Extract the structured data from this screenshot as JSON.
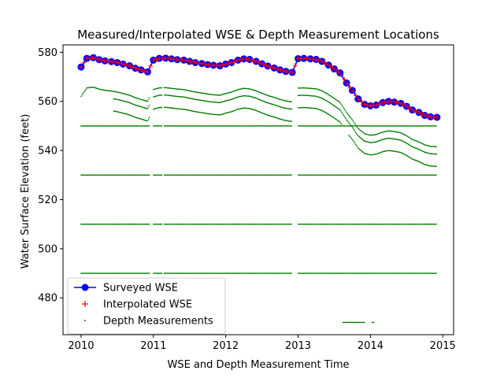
{
  "chart_data": {
    "type": "scatter",
    "title": "Measured/Interpolated WSE & Depth Measurement Locations",
    "xlabel": "WSE and Depth Measurement Time",
    "ylabel": "Water Surface Elevation (feet)",
    "xlim": [
      2009.75,
      2015.15
    ],
    "ylim": [
      465,
      583
    ],
    "xticks": [
      2010,
      2011,
      2012,
      2013,
      2014,
      2015
    ],
    "xtick_labels": [
      "2010",
      "2011",
      "2012",
      "2013",
      "2014",
      "2015"
    ],
    "yticks": [
      480,
      500,
      520,
      540,
      560,
      580
    ],
    "ytick_labels": [
      "480",
      "500",
      "520",
      "540",
      "560",
      "580"
    ],
    "grid": false,
    "legend": {
      "position": "lower-left",
      "entries": [
        "Surveyed WSE",
        "Interpolated WSE",
        "Depth Measurements"
      ]
    },
    "colors": {
      "surveyed": "#0000ff",
      "interpolated": "#ff0000",
      "depth": "#008000"
    },
    "wse_series": {
      "name": "Surveyed WSE",
      "x": [
        2010.0,
        2010.08,
        2010.17,
        2010.25,
        2010.33,
        2010.42,
        2010.5,
        2010.58,
        2010.67,
        2010.75,
        2010.83,
        2010.92,
        2011.0,
        2011.08,
        2011.17,
        2011.25,
        2011.33,
        2011.42,
        2011.5,
        2011.58,
        2011.67,
        2011.75,
        2011.83,
        2011.92,
        2012.0,
        2012.08,
        2012.17,
        2012.25,
        2012.33,
        2012.42,
        2012.5,
        2012.58,
        2012.67,
        2012.75,
        2012.83,
        2012.92,
        2013.0,
        2013.08,
        2013.17,
        2013.25,
        2013.33,
        2013.42,
        2013.5,
        2013.58,
        2013.67,
        2013.75,
        2013.83,
        2013.92,
        2014.0,
        2014.08,
        2014.17,
        2014.25,
        2014.33,
        2014.42,
        2014.5,
        2014.58,
        2014.67,
        2014.75,
        2014.83,
        2014.92
      ],
      "y": [
        574,
        577.5,
        577.8,
        577,
        576.5,
        576.2,
        575.8,
        575.2,
        574.5,
        573.5,
        572.8,
        572,
        576.8,
        577.5,
        577.6,
        577.3,
        577,
        576.8,
        576.3,
        575.8,
        575.4,
        575,
        574.7,
        574.5,
        575.2,
        575.8,
        576.8,
        577.3,
        577.1,
        576.3,
        575.3,
        574.4,
        573.6,
        572.8,
        572.2,
        571.8,
        577.4,
        577.5,
        577.3,
        577.1,
        576.3,
        574.8,
        573.2,
        571.6,
        567.5,
        564.5,
        561,
        558.8,
        558.2,
        558.5,
        559.5,
        560,
        559.7,
        559.2,
        558,
        556.5,
        555.5,
        554.3,
        553.7,
        553.5
      ]
    },
    "depth_series": {
      "name": "Depth Measurements",
      "horizontal_levels": [
        550,
        530,
        510,
        490
      ],
      "horizontal_x_range": [
        2010.0,
        2014.92
      ],
      "horizontal_gaps": [
        [
          2010.95,
          2011.0
        ],
        [
          2011.12,
          2011.15
        ],
        [
          2012.92,
          2013.0
        ]
      ],
      "offsets_below_wse": [
        12,
        15,
        20
      ],
      "extra_level": 470,
      "extra_x_range": [
        2013.62,
        2014.05
      ]
    }
  }
}
